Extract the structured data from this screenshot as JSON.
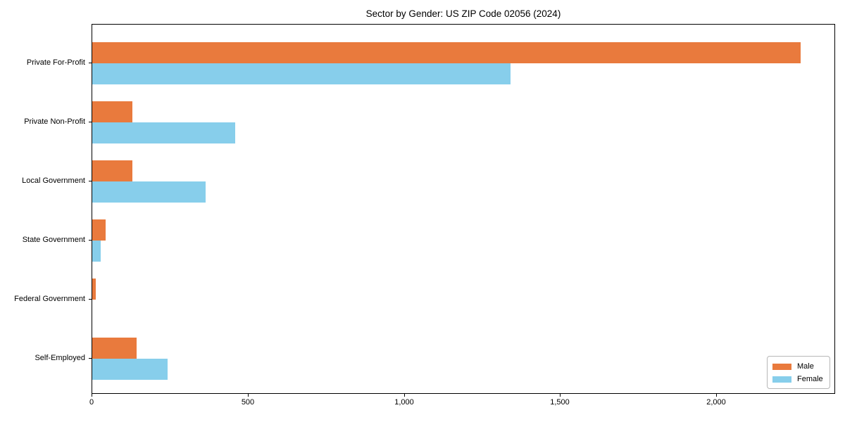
{
  "chart_data": {
    "type": "bar",
    "orientation": "horizontal",
    "title": "Sector by Gender: US ZIP Code 02056 (2024)",
    "categories": [
      "Private For-Profit",
      "Private Non-Profit",
      "Local Government",
      "State Government",
      "Federal Government",
      "Self-Employed"
    ],
    "series": [
      {
        "name": "Male",
        "color": "#e97a3d",
        "values": [
          2268,
          128,
          128,
          43,
          11,
          142
        ]
      },
      {
        "name": "Female",
        "color": "#87ceeb",
        "values": [
          1340,
          458,
          363,
          27,
          0,
          241
        ]
      }
    ],
    "xlim": [
      0,
      2381
    ],
    "x_ticks": [
      {
        "value": 0,
        "label": "0"
      },
      {
        "value": 500,
        "label": "500"
      },
      {
        "value": 1000,
        "label": "1,000"
      },
      {
        "value": 1500,
        "label": "1,500"
      },
      {
        "value": 2000,
        "label": "2,000"
      }
    ],
    "ylabel": "",
    "xlabel": "",
    "grid": false,
    "legend_position": "lower right",
    "background_color": "#ffffff",
    "spine_color": "#000000"
  }
}
